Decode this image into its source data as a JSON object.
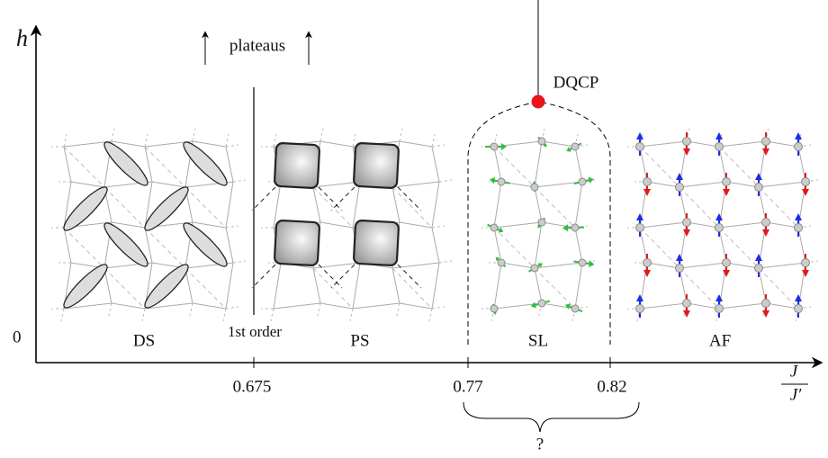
{
  "axes": {
    "y_label": "h",
    "x_label_num": "J",
    "x_label_den": "J′",
    "origin": "0"
  },
  "x_ticks": [
    "0.675",
    "0.77",
    "0.82"
  ],
  "annotations": {
    "plateaus": "plateaus",
    "first_order": "1st order",
    "dqcp": "DQCP",
    "question": "?"
  },
  "phases": [
    "DS",
    "PS",
    "SL",
    "AF"
  ]
}
